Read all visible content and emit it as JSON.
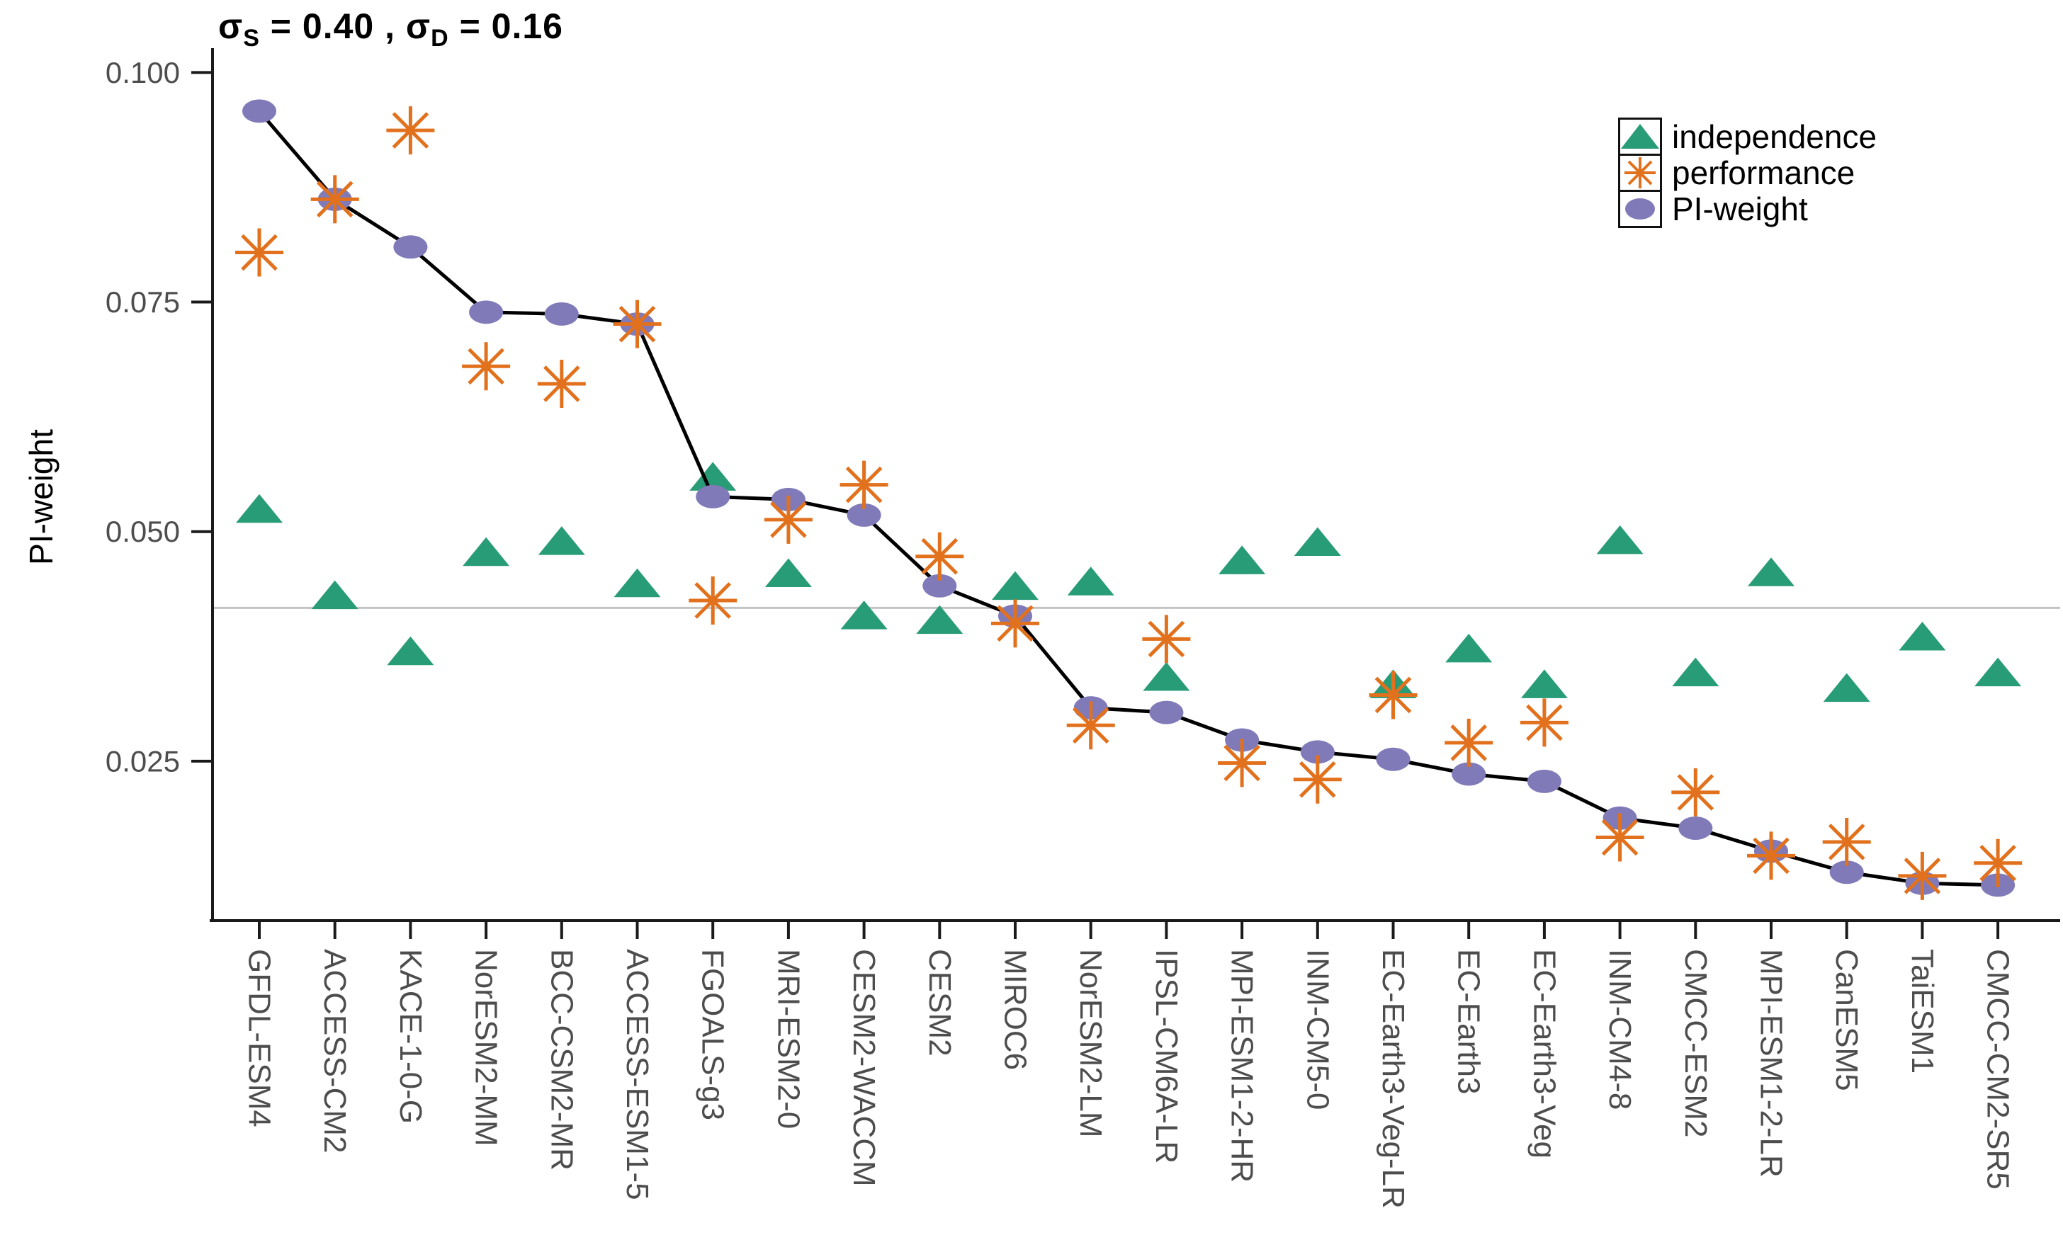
{
  "title": {
    "sigma_s": "σ",
    "sigma_s_sub": "S",
    "sigma_s_val": " = 0.40",
    "sep": " , ",
    "sigma_d": "σ",
    "sigma_d_sub": "D",
    "sigma_d_val": " = 0.16"
  },
  "y_axis": {
    "label": "PI-weight",
    "tick_labels": [
      "0.100",
      "0.075",
      "0.050",
      "0.025"
    ],
    "tick_values": [
      0.1,
      0.075,
      0.05,
      0.025
    ]
  },
  "legend": {
    "items": [
      {
        "label": "independence",
        "marker": "triangle-icon"
      },
      {
        "label": "performance",
        "marker": "asterisk-icon"
      },
      {
        "label": "PI-weight",
        "marker": "circle-icon"
      }
    ]
  },
  "colors": {
    "independence": "#289c77",
    "performance": "#e2711d",
    "pi_weight": "#807ab8",
    "line": "#000000",
    "reference_line": "#c3c3c3",
    "axis": "#1a1a1a",
    "tick_label": "#4d4d4d"
  },
  "chart_data": {
    "type": "scatter",
    "title": "sigma_S = 0.40 , sigma_D = 0.16",
    "ylabel": "PI-weight",
    "xlabel": "",
    "ylim": [
      0.009,
      0.1025
    ],
    "grid": false,
    "legend_position": "top-right",
    "hline": 0.0417,
    "hline_meaning": "equal weight 1/24",
    "categories": [
      "GFDL-ESM4",
      "ACCESS-CM2",
      "KACE-1-0-G",
      "NorESM2-MM",
      "BCC-CSM2-MR",
      "ACCESS-ESM1-5",
      "FGOALS-g3",
      "MRI-ESM2-0",
      "CESM2-WACCM",
      "CESM2",
      "MIROC6",
      "NorESM2-LM",
      "IPSL-CM6A-LR",
      "MPI-ESM1-2-HR",
      "INM-CM5-0",
      "EC-Earth3-Veg-LR",
      "EC-Earth3",
      "EC-Earth3-Veg",
      "INM-CM4-8",
      "CMCC-ESM2",
      "MPI-ESM1-2-LR",
      "CanESM5",
      "TaiESM1",
      "CMCC-CM2-SR5"
    ],
    "series": [
      {
        "name": "independence",
        "marker": "triangle",
        "connected": false,
        "values": [
          0.052,
          0.0426,
          0.0365,
          0.0473,
          0.0485,
          0.0439,
          0.0555,
          0.045,
          0.0404,
          0.0399,
          0.0436,
          0.0441,
          0.0337,
          0.0464,
          0.0484,
          0.0329,
          0.0368,
          0.0329,
          0.0486,
          0.0342,
          0.0451,
          0.0325,
          0.0381,
          0.0342
        ]
      },
      {
        "name": "performance",
        "marker": "asterisk",
        "connected": false,
        "values": [
          0.0804,
          0.0862,
          0.0937,
          0.068,
          0.0661,
          0.0726,
          0.0425,
          0.0513,
          0.0551,
          0.0473,
          0.04,
          0.0289,
          0.0383,
          0.0248,
          0.023,
          0.0322,
          0.027,
          0.0292,
          0.0167,
          0.0216,
          0.0147,
          0.0162,
          0.0125,
          0.0139
        ]
      },
      {
        "name": "PI-weight",
        "marker": "circle",
        "connected": true,
        "values": [
          0.0958,
          0.0862,
          0.081,
          0.0739,
          0.0737,
          0.0726,
          0.0538,
          0.0535,
          0.0518,
          0.0441,
          0.0408,
          0.0308,
          0.0303,
          0.0273,
          0.026,
          0.0252,
          0.0236,
          0.0228,
          0.0188,
          0.0177,
          0.0152,
          0.0129,
          0.0117,
          0.0115
        ]
      }
    ]
  }
}
